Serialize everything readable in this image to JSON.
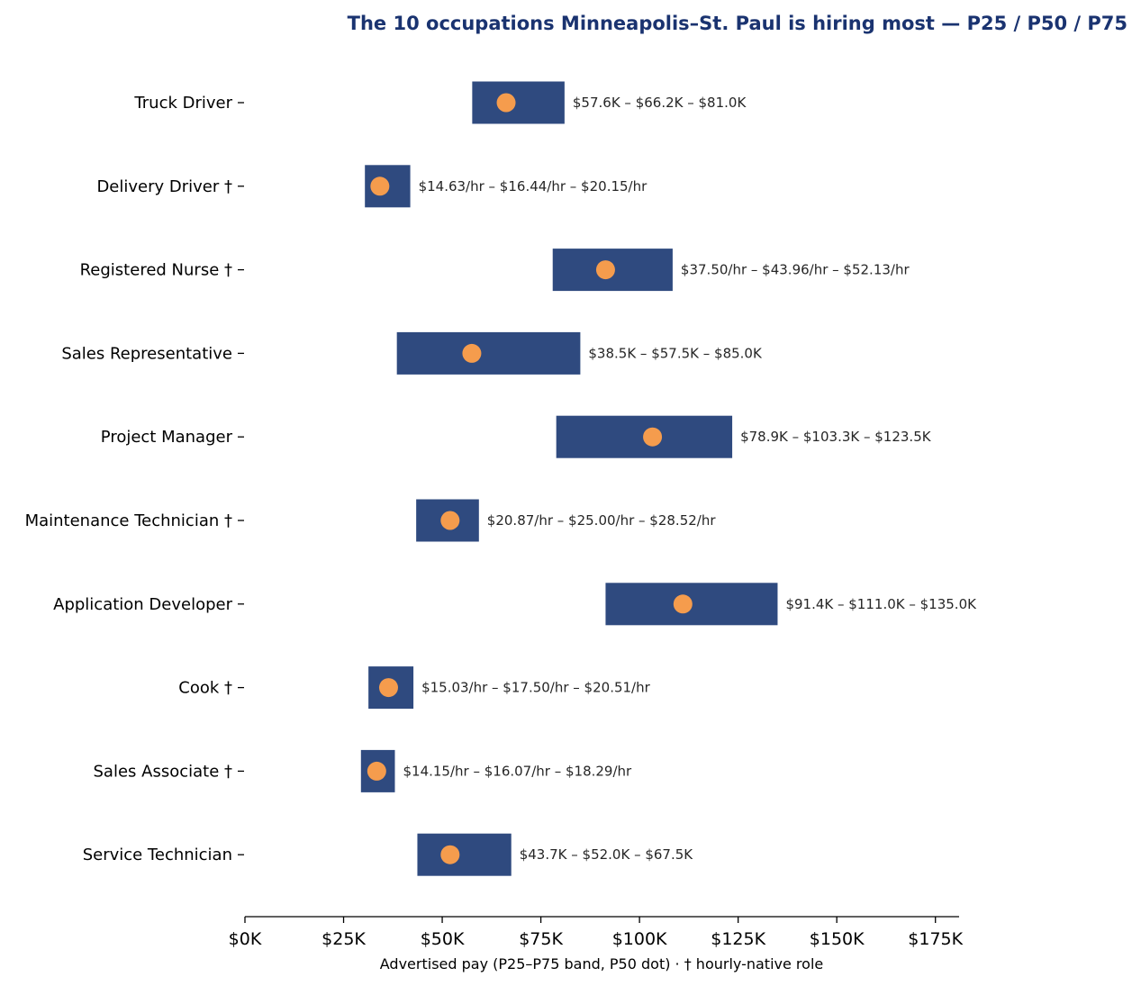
{
  "chart_data": {
    "type": "range_dot",
    "title": "The 10 occupations Minneapolis–St. Paul is hiring most — P25 / P50 / P75",
    "xlabel": "Advertised pay (P25–P75 band, P50 dot) · † hourly-native role",
    "ylabel": "",
    "xlim": [
      0,
      181
    ],
    "x_unit": "$K annualized",
    "x_ticks": [
      0,
      25,
      50,
      75,
      100,
      125,
      150,
      175
    ],
    "x_tick_labels": [
      "$0K",
      "$25K",
      "$50K",
      "$75K",
      "$100K",
      "$125K",
      "$150K",
      "$175K"
    ],
    "grid": false,
    "legend": null,
    "colors": {
      "band": "#2f4a7f",
      "dot": "#f59c4d",
      "title": "#1a3370"
    },
    "categories": [
      "Truck Driver",
      "Delivery Driver †",
      "Registered Nurse †",
      "Sales Representative",
      "Project Manager",
      "Maintenance Technician †",
      "Application Developer",
      "Cook †",
      "Sales Associate †",
      "Service Technician"
    ],
    "series": [
      {
        "name": "P25",
        "values": [
          57.6,
          30.4,
          78.0,
          38.5,
          78.9,
          43.4,
          91.4,
          31.3,
          29.4,
          43.7
        ]
      },
      {
        "name": "P50",
        "values": [
          66.2,
          34.2,
          91.4,
          57.5,
          103.3,
          52.0,
          111.0,
          36.4,
          33.4,
          52.0
        ]
      },
      {
        "name": "P75",
        "values": [
          81.0,
          41.9,
          108.4,
          85.0,
          123.5,
          59.3,
          135.0,
          42.7,
          38.0,
          67.5
        ]
      }
    ],
    "annotations": [
      "$57.6K – $66.2K – $81.0K",
      "$14.63/hr – $16.44/hr – $20.15/hr",
      "$37.50/hr – $43.96/hr – $52.13/hr",
      "$38.5K – $57.5K – $85.0K",
      "$78.9K – $103.3K – $123.5K",
      "$20.87/hr – $25.00/hr – $28.52/hr",
      "$91.4K – $111.0K – $135.0K",
      "$15.03/hr – $17.50/hr – $20.51/hr",
      "$14.15/hr – $16.07/hr – $18.29/hr",
      "$43.7K – $52.0K – $67.5K"
    ]
  }
}
